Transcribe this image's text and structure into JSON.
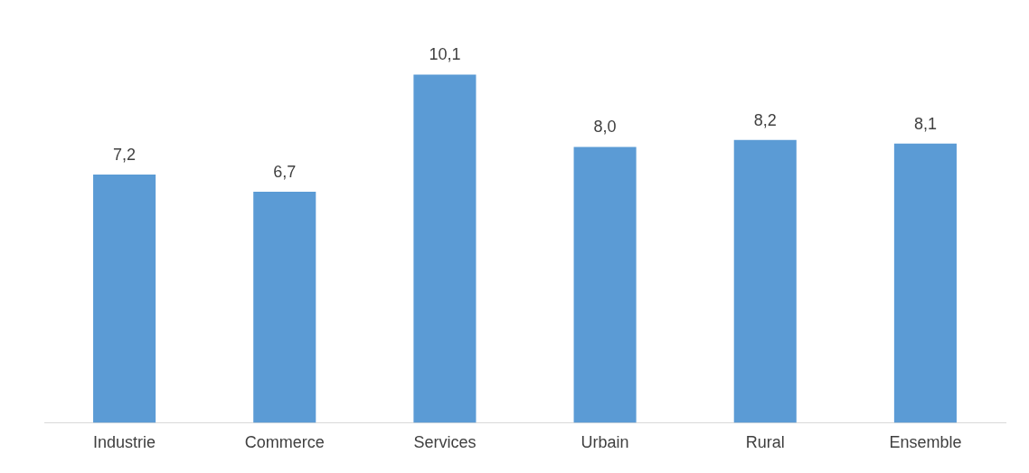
{
  "chart_data": {
    "type": "bar",
    "categories": [
      "Industrie",
      "Commerce",
      "Services",
      "Urbain",
      "Rural",
      "Ensemble"
    ],
    "values": [
      7.2,
      6.7,
      10.1,
      8.0,
      8.2,
      8.1
    ],
    "value_labels": [
      "7,2",
      "6,7",
      "10,1",
      "8,0",
      "8,2",
      "8,1"
    ],
    "color": "#5b9bd5",
    "tick_labels": "x",
    "grid": false,
    "legend": false
  }
}
